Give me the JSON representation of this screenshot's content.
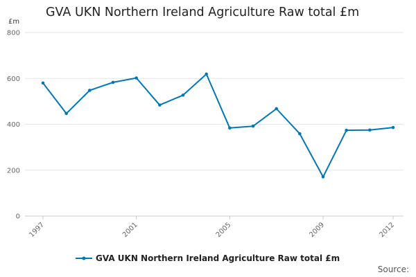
{
  "colors": {
    "series": "#0077b6",
    "grid": "#e6e6e6",
    "axis_text": "#666666"
  },
  "source_label": "Source:",
  "chart_data": {
    "type": "line",
    "title": "GVA UKN Northern Ireland Agriculture Raw total £m",
    "ylabel": "£m",
    "xlabel": "",
    "ylim": [
      0,
      800
    ],
    "yticks": [
      0,
      200,
      400,
      600,
      800
    ],
    "xlim": [
      1997,
      2012
    ],
    "xticks": [
      1997,
      2001,
      2005,
      2009,
      2012
    ],
    "grid": true,
    "legend_position": "bottom",
    "series": [
      {
        "name": "GVA UKN Northern Ireland Agriculture Raw total £m",
        "x": [
          1997,
          1998,
          1999,
          2000,
          2001,
          2002,
          2003,
          2004,
          2005,
          2006,
          2007,
          2008,
          2009,
          2010,
          2011,
          2012
        ],
        "values": [
          580,
          447,
          548,
          583,
          602,
          484,
          527,
          619,
          384,
          392,
          468,
          359,
          171,
          374,
          375,
          386
        ]
      }
    ]
  }
}
